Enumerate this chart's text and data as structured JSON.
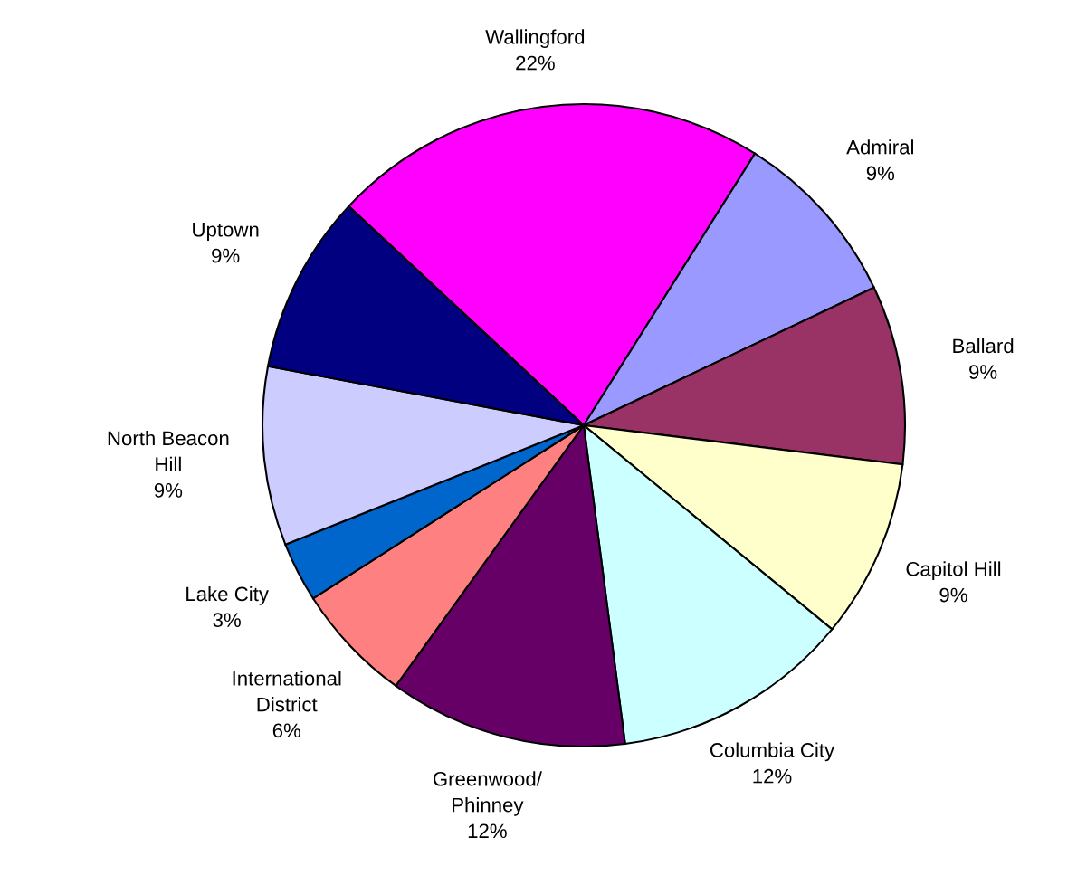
{
  "chart_data": {
    "type": "pie",
    "categories": [
      "Wallingford",
      "Admiral",
      "Ballard",
      "Capitol Hill",
      "Columbia City",
      "Greenwood/\nPhinney",
      "International\nDistrict",
      "Lake City",
      "North Beacon\nHill",
      "Uptown"
    ],
    "values": [
      22,
      9,
      9,
      9,
      12,
      12,
      6,
      3,
      9,
      9
    ],
    "value_labels": [
      "22%",
      "9%",
      "9%",
      "9%",
      "12%",
      "12%",
      "6%",
      "3%",
      "9%",
      "9%"
    ],
    "colors": [
      "#ff00ff",
      "#9999ff",
      "#993366",
      "#ffffcc",
      "#ccffff",
      "#660066",
      "#ff8080",
      "#0066cc",
      "#ccccff",
      "#000080"
    ],
    "legend": false
  }
}
